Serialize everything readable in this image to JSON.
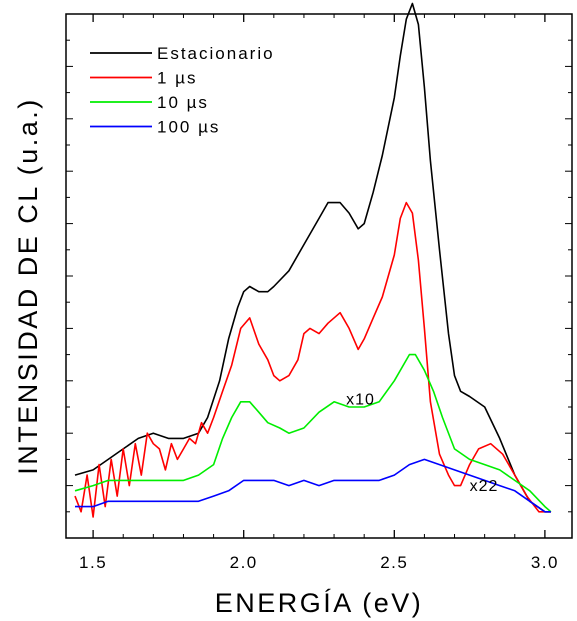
{
  "chart_data": {
    "type": "line",
    "xlabel": "ENERGÍA (eV)",
    "ylabel": "INTENSIDAD DE CL (u.a.)",
    "xlim": [
      1.41,
      3.09
    ],
    "ylim": [
      0,
      100
    ],
    "x_ticks": [
      1.5,
      2.0,
      2.5,
      3.0
    ],
    "x_tick_labels": [
      "1.5",
      "2.0",
      "2.5",
      "3.0"
    ],
    "y_tick_labels_shown": false,
    "grid": false,
    "legend_position": "top-left",
    "annotations": [
      {
        "text": "x10",
        "x": 2.34,
        "y": 25.5
      },
      {
        "text": "x22",
        "x": 2.75,
        "y": 9
      }
    ],
    "series": [
      {
        "name": "Estacionario",
        "color": "#000000",
        "x": [
          1.44,
          1.5,
          1.55,
          1.6,
          1.65,
          1.7,
          1.75,
          1.8,
          1.85,
          1.88,
          1.92,
          1.95,
          1.98,
          2.0,
          2.02,
          2.05,
          2.08,
          2.1,
          2.15,
          2.2,
          2.25,
          2.28,
          2.32,
          2.35,
          2.38,
          2.4,
          2.43,
          2.46,
          2.5,
          2.52,
          2.54,
          2.56,
          2.58,
          2.6,
          2.62,
          2.65,
          2.68,
          2.7,
          2.72,
          2.75,
          2.8,
          2.85,
          2.9,
          2.95,
          3.0,
          3.02
        ],
        "y": [
          12,
          13,
          15,
          17,
          19,
          20,
          19,
          19,
          20,
          23,
          30,
          38,
          44,
          47,
          48,
          47,
          47,
          48,
          51,
          56,
          61,
          64,
          64,
          62,
          59,
          60,
          66,
          73,
          84,
          92,
          99,
          102,
          98,
          86,
          72,
          55,
          39,
          31,
          28,
          27,
          25,
          19,
          12,
          7,
          5,
          5
        ]
      },
      {
        "name": "1 µs",
        "color": "#ff0000",
        "x": [
          1.44,
          1.46,
          1.48,
          1.5,
          1.52,
          1.54,
          1.56,
          1.58,
          1.6,
          1.62,
          1.64,
          1.66,
          1.68,
          1.7,
          1.72,
          1.74,
          1.76,
          1.78,
          1.8,
          1.82,
          1.84,
          1.86,
          1.88,
          1.9,
          1.93,
          1.96,
          1.99,
          2.02,
          2.05,
          2.08,
          2.1,
          2.12,
          2.15,
          2.18,
          2.2,
          2.22,
          2.25,
          2.28,
          2.32,
          2.35,
          2.38,
          2.4,
          2.43,
          2.46,
          2.5,
          2.52,
          2.54,
          2.56,
          2.58,
          2.6,
          2.62,
          2.65,
          2.68,
          2.7,
          2.72,
          2.75,
          2.78,
          2.82,
          2.86,
          2.9,
          2.94,
          2.98,
          3.02
        ],
        "y": [
          8,
          5,
          12,
          4,
          14,
          6,
          15,
          8,
          17,
          10,
          18,
          12,
          20,
          18,
          17,
          13,
          18,
          15,
          17,
          19,
          18,
          22,
          20,
          23,
          28,
          33,
          40,
          42,
          37,
          34,
          31,
          30,
          31,
          34,
          39,
          40,
          39,
          41,
          43,
          40,
          36,
          38,
          42,
          46,
          54,
          61,
          64,
          62,
          53,
          40,
          26,
          16,
          12,
          10,
          10,
          14,
          17,
          18,
          16,
          12,
          8,
          5,
          5
        ]
      },
      {
        "name": "10 µs",
        "color": "#00ee00",
        "x": [
          1.44,
          1.5,
          1.55,
          1.6,
          1.7,
          1.8,
          1.85,
          1.9,
          1.93,
          1.96,
          1.99,
          2.02,
          2.05,
          2.08,
          2.12,
          2.15,
          2.2,
          2.25,
          2.3,
          2.35,
          2.4,
          2.45,
          2.5,
          2.55,
          2.57,
          2.6,
          2.63,
          2.66,
          2.7,
          2.75,
          2.8,
          2.85,
          2.9,
          2.95,
          3.0,
          3.02
        ],
        "y": [
          9,
          10,
          11,
          11,
          11,
          11,
          12,
          14,
          19,
          23,
          26,
          26,
          24,
          22,
          21,
          20,
          21,
          24,
          26,
          25,
          25,
          26,
          30,
          35,
          35,
          32,
          28,
          23,
          17,
          15,
          14,
          13,
          11,
          9,
          6,
          5
        ]
      },
      {
        "name": "100 µs",
        "color": "#0000ff",
        "x": [
          1.44,
          1.5,
          1.55,
          1.6,
          1.7,
          1.8,
          1.85,
          1.9,
          1.95,
          2.0,
          2.05,
          2.1,
          2.15,
          2.2,
          2.25,
          2.3,
          2.35,
          2.4,
          2.45,
          2.5,
          2.55,
          2.6,
          2.65,
          2.7,
          2.75,
          2.8,
          2.85,
          2.9,
          2.95,
          3.0,
          3.02
        ],
        "y": [
          6,
          6,
          7,
          7,
          7,
          7,
          7,
          8,
          9,
          11,
          11,
          11,
          10,
          11,
          10,
          11,
          11,
          11,
          11,
          12,
          14,
          15,
          14,
          13,
          12,
          11,
          10,
          9,
          7,
          5,
          5
        ]
      }
    ]
  }
}
